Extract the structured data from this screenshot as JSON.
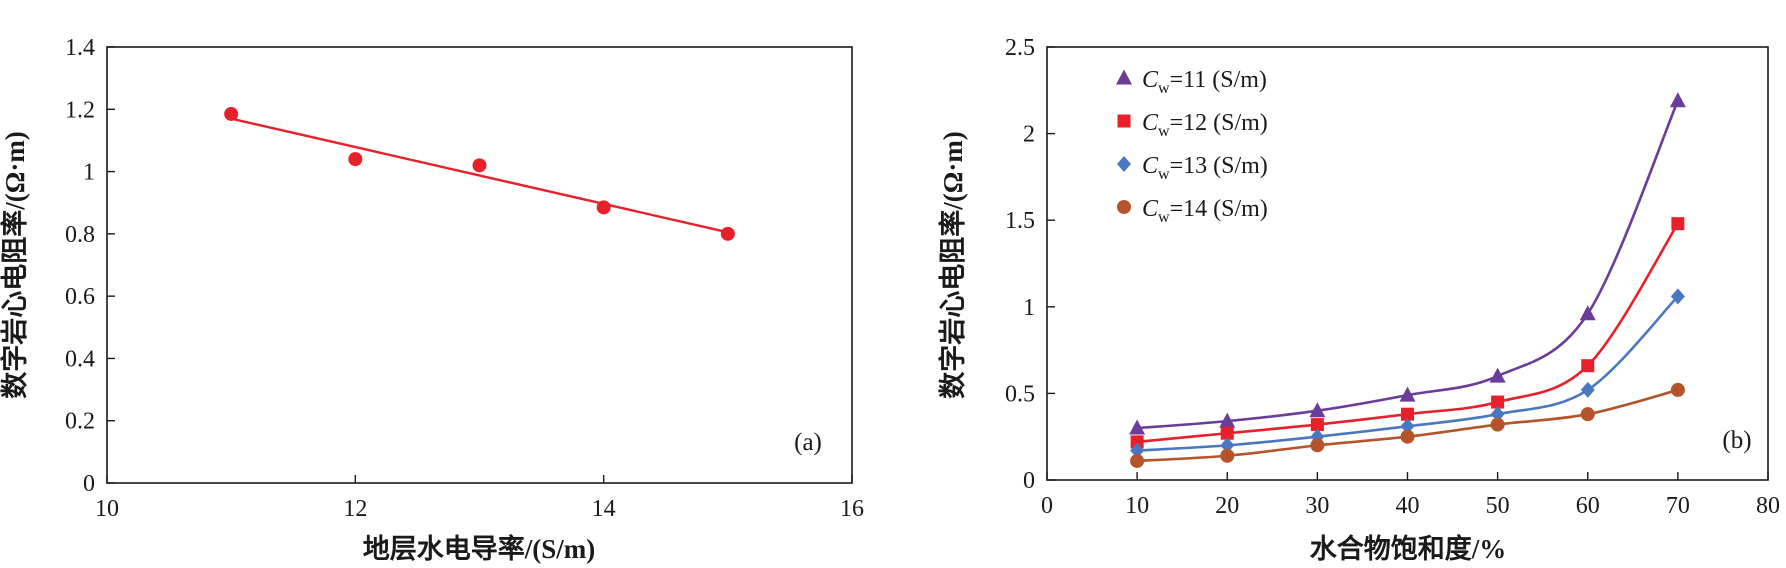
{
  "chart_data": [
    {
      "type": "scatter",
      "panel_label": "(a)",
      "xlabel": "地层水电导率/(S/m)",
      "ylabel": "数字岩心电阻率/(Ω·m)",
      "xlim": [
        10,
        16
      ],
      "ylim": [
        0,
        1.4
      ],
      "x_ticks": [
        "10",
        "12",
        "14",
        "16"
      ],
      "y_ticks": [
        "0",
        "0.2",
        "0.4",
        "0.6",
        "0.8",
        "1",
        "1.2",
        "1.4"
      ],
      "grid": false,
      "series": [
        {
          "color": "#e8202a",
          "marker": "circle",
          "x": [
            11,
            12,
            13,
            14,
            15
          ],
          "y": [
            1.185,
            1.04,
            1.02,
            0.885,
            0.8
          ],
          "fit_line": [
            [
              11,
              1.17
            ],
            [
              15,
              0.805
            ]
          ]
        }
      ]
    },
    {
      "type": "line",
      "panel_label": "(b)",
      "xlabel": "水合物饱和度/%",
      "ylabel": "数字岩心电阻率/(Ω·m)",
      "xlim": [
        0,
        80
      ],
      "ylim": [
        0,
        2.5
      ],
      "x_ticks": [
        "0",
        "10",
        "20",
        "30",
        "40",
        "50",
        "60",
        "70",
        "80"
      ],
      "y_ticks": [
        "0",
        "0.5",
        "1",
        "1.5",
        "2",
        "2.5"
      ],
      "grid": false,
      "legend_position": "top-left",
      "legend_symbol": "C",
      "legend_subscript": "w",
      "series": [
        {
          "label_value": "=11 (S/m)",
          "color": "#6a3d9a",
          "marker": "triangle",
          "x": [
            10,
            20,
            30,
            40,
            50,
            60,
            70
          ],
          "y": [
            0.3,
            0.34,
            0.4,
            0.49,
            0.6,
            0.96,
            2.19
          ]
        },
        {
          "label_value": "=12 (S/m)",
          "color": "#e8202a",
          "marker": "square",
          "x": [
            10,
            20,
            30,
            40,
            50,
            60,
            70
          ],
          "y": [
            0.22,
            0.27,
            0.32,
            0.38,
            0.45,
            0.66,
            1.48
          ]
        },
        {
          "label_value": "=13 (S/m)",
          "color": "#4a78c0",
          "marker": "diamond",
          "x": [
            10,
            20,
            30,
            40,
            50,
            60,
            70
          ],
          "y": [
            0.17,
            0.2,
            0.25,
            0.31,
            0.38,
            0.52,
            1.06
          ]
        },
        {
          "label_value": "=14 (S/m)",
          "color": "#b5532a",
          "marker": "circle",
          "x": [
            10,
            20,
            30,
            40,
            50,
            60,
            70
          ],
          "y": [
            0.11,
            0.14,
            0.2,
            0.25,
            0.32,
            0.38,
            0.52
          ]
        }
      ]
    }
  ]
}
